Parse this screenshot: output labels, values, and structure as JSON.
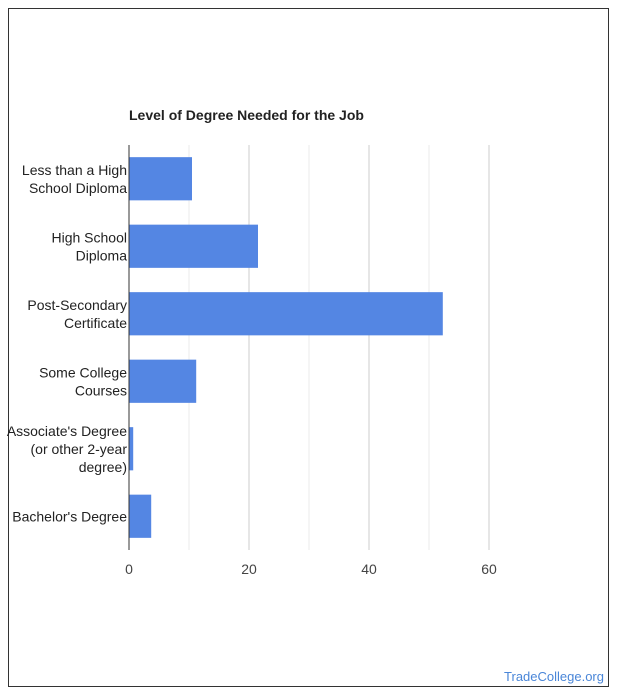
{
  "chart_data": {
    "type": "bar",
    "orientation": "horizontal",
    "title": "Level of Degree Needed for the Job",
    "categories": [
      [
        "Less than a High",
        "School Diploma"
      ],
      [
        "High School",
        "Diploma"
      ],
      [
        "Post-Secondary",
        "Certificate"
      ],
      [
        "Some College",
        "Courses"
      ],
      [
        "Associate's Degree",
        "(or other 2-year",
        "degree)"
      ],
      [
        "Bachelor's Degree"
      ]
    ],
    "values": [
      10.5,
      21.5,
      52.3,
      11.2,
      0.7,
      3.7
    ],
    "xlim": [
      0,
      70
    ],
    "xticks": [
      0,
      20,
      40,
      60
    ],
    "grid": true,
    "bar_color": "#5486e3"
  },
  "watermark": "TradeCollege.org"
}
